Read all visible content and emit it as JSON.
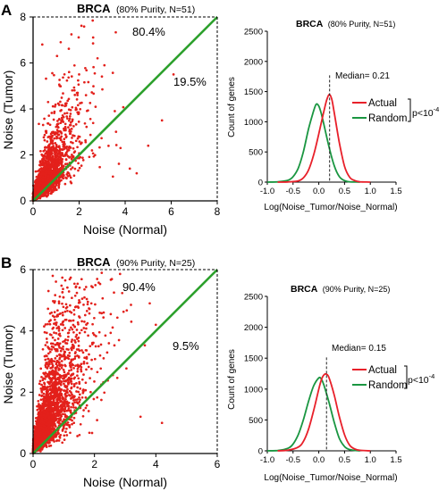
{
  "panels": [
    {
      "letter": "A",
      "scatter": {
        "title_bold": "BRCA",
        "title_rest": "(80% Purity, N=51)",
        "upper_pct": "80.4%",
        "lower_pct": "19.5%",
        "xlabel": "Noise (Normal)",
        "ylabel": "Noise (Tumor)"
      },
      "dist": {
        "title_bold": "BRCA",
        "title_rest": "(80% Purity, N=51)",
        "median_label": "Median= 0.21",
        "legend_actual": "Actual",
        "legend_random": "Random",
        "pvalue_base": "p<10",
        "pvalue_exp": "-4",
        "xlabel": "Log(Noise_Tumor/Noise_Normal)",
        "ylabel": "Count of genes"
      }
    },
    {
      "letter": "B",
      "scatter": {
        "title_bold": "BRCA",
        "title_rest": "(90% Purity, N=25)",
        "upper_pct": "90.4%",
        "lower_pct": "9.5%",
        "xlabel": "Noise (Normal)",
        "ylabel": "Noise (Tumor)"
      },
      "dist": {
        "title_bold": "BRCA",
        "title_rest": "(90% Purity, N=25)",
        "median_label": "Median= 0.15",
        "legend_actual": "Actual",
        "legend_random": "Random",
        "pvalue_base": "p<10",
        "pvalue_exp": "-4",
        "xlabel": "Log(Noise_Tumor/Noise_Normal)",
        "ylabel": "Count of genes"
      }
    }
  ],
  "colors": {
    "actual": "#e8202a",
    "random": "#1a9641",
    "diagonal": "#2ca02c",
    "points": "#e3201b",
    "axis": "#000000"
  },
  "chart_data": [
    {
      "type": "scatter",
      "title": "BRCA (80% Purity, N=51)",
      "xlabel": "Noise (Normal)",
      "ylabel": "Noise (Tumor)",
      "xlim": [
        0,
        8
      ],
      "ylim": [
        0,
        8
      ],
      "xticks": [
        0,
        2,
        4,
        6,
        8
      ],
      "yticks": [
        0,
        2,
        4,
        6,
        8
      ],
      "reference_line": {
        "x": [
          0,
          8
        ],
        "y": [
          0,
          8
        ]
      },
      "annotations": [
        "80.4%",
        "19.5%"
      ],
      "points": {
        "count": 2600,
        "seed": 11,
        "x_scale": 0.55,
        "y_ratio_mu": 0.42,
        "y_ratio_sigma": 0.55,
        "outliers": [
          [
            2.3,
            4.6
          ],
          [
            2.0,
            5.5
          ],
          [
            3.8,
            2.3
          ],
          [
            4.5,
            1.2
          ],
          [
            5.0,
            2.4
          ],
          [
            5.6,
            3.5
          ],
          [
            4.2,
            1.4
          ],
          [
            3.1,
            5.9
          ],
          [
            1.2,
            6.9
          ],
          [
            0.4,
            6.8
          ],
          [
            6.1,
            5.5
          ],
          [
            2.8,
            6.2
          ]
        ]
      },
      "grid": false
    },
    {
      "type": "line",
      "title": "BRCA (80% Purity, N=51)",
      "xlabel": "Log(Noise_Tumor/Noise_Normal)",
      "ylabel": "Count of genes",
      "xlim": [
        -1.0,
        1.5
      ],
      "ylim": [
        0,
        2500
      ],
      "xticks": [
        -1.0,
        -0.5,
        0.0,
        0.5,
        1.0,
        1.5
      ],
      "yticks": [
        0,
        500,
        1000,
        1500,
        2000,
        2500
      ],
      "median": 0.21,
      "series": [
        {
          "name": "Actual",
          "x": [
            -0.8,
            -0.6,
            -0.4,
            -0.3,
            -0.2,
            -0.1,
            0.0,
            0.1,
            0.15,
            0.2,
            0.25,
            0.3,
            0.4,
            0.5,
            0.6,
            0.7,
            0.8,
            1.0
          ],
          "y": [
            0,
            3,
            20,
            70,
            200,
            450,
            800,
            1180,
            1350,
            1450,
            1380,
            1150,
            650,
            260,
            80,
            25,
            5,
            0
          ]
        },
        {
          "name": "Random",
          "x": [
            -1.0,
            -0.8,
            -0.6,
            -0.5,
            -0.4,
            -0.3,
            -0.2,
            -0.1,
            -0.05,
            0.0,
            0.05,
            0.1,
            0.2,
            0.3,
            0.4,
            0.5,
            0.6,
            0.8
          ],
          "y": [
            0,
            5,
            30,
            90,
            230,
            500,
            880,
            1180,
            1290,
            1260,
            1130,
            950,
            580,
            270,
            90,
            25,
            5,
            0
          ]
        }
      ],
      "legend": "right",
      "grid": false
    },
    {
      "type": "scatter",
      "title": "BRCA (90% Purity, N=25)",
      "xlabel": "Noise (Normal)",
      "ylabel": "Noise (Tumor)",
      "xlim": [
        0,
        6
      ],
      "ylim": [
        0,
        6
      ],
      "xticks": [
        0,
        2,
        4,
        6
      ],
      "yticks": [
        0,
        2,
        4,
        6
      ],
      "reference_line": {
        "x": [
          0,
          6
        ],
        "y": [
          0,
          6
        ]
      },
      "annotations": [
        "90.4%",
        "9.5%"
      ],
      "points": {
        "count": 3200,
        "seed": 23,
        "x_scale": 0.55,
        "y_ratio_mu": 0.78,
        "y_ratio_sigma": 0.62,
        "outliers": [
          [
            3.8,
            4.9
          ],
          [
            4.0,
            4.2
          ],
          [
            3.2,
            4.3
          ],
          [
            2.8,
            3.7
          ],
          [
            1.9,
            4.9
          ],
          [
            1.5,
            5.0
          ],
          [
            0.5,
            5.3
          ],
          [
            4.2,
            1.0
          ],
          [
            3.5,
            1.2
          ],
          [
            2.3,
            4.6
          ]
        ]
      },
      "grid": false
    },
    {
      "type": "line",
      "title": "BRCA (90% Purity, N=25)",
      "xlabel": "Log(Noise_Tumor/Noise_Normal)",
      "ylabel": "Count of genes",
      "xlim": [
        -1.0,
        1.5
      ],
      "ylim": [
        0,
        2500
      ],
      "xticks": [
        -1.0,
        -0.5,
        0.0,
        0.5,
        1.0,
        1.5
      ],
      "yticks": [
        0,
        500,
        1000,
        1500,
        2000,
        2500
      ],
      "median": 0.15,
      "series": [
        {
          "name": "Actual",
          "x": [
            -0.8,
            -0.6,
            -0.4,
            -0.3,
            -0.2,
            -0.1,
            0.0,
            0.05,
            0.1,
            0.15,
            0.2,
            0.3,
            0.4,
            0.5,
            0.6,
            0.7,
            0.8,
            1.0
          ],
          "y": [
            0,
            10,
            60,
            150,
            350,
            650,
            1000,
            1150,
            1230,
            1240,
            1180,
            900,
            550,
            260,
            90,
            30,
            8,
            0
          ]
        },
        {
          "name": "Random",
          "x": [
            -1.0,
            -0.8,
            -0.6,
            -0.5,
            -0.4,
            -0.3,
            -0.2,
            -0.1,
            0.0,
            0.05,
            0.1,
            0.2,
            0.3,
            0.4,
            0.5,
            0.6,
            0.8
          ],
          "y": [
            0,
            5,
            40,
            110,
            260,
            500,
            800,
            1050,
            1180,
            1160,
            1060,
            780,
            460,
            200,
            70,
            20,
            0
          ]
        }
      ],
      "legend": "right",
      "grid": false
    }
  ]
}
